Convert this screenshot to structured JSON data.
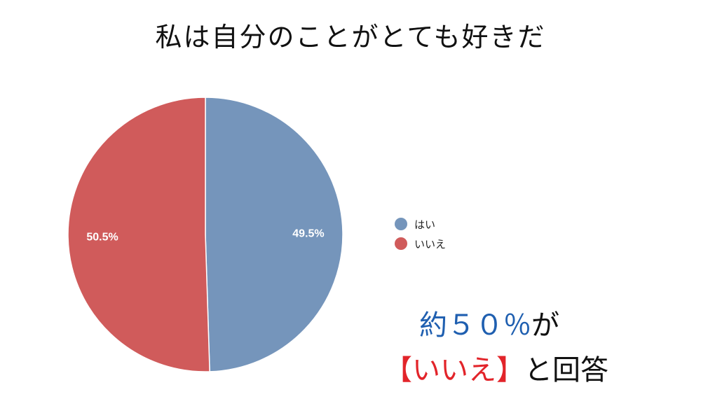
{
  "chart_data": {
    "type": "pie",
    "title": "私は自分のことがとても好きだ",
    "categories": [
      "はい",
      "いいえ"
    ],
    "values": [
      49.5,
      50.5
    ],
    "value_labels": [
      "49.5%",
      "50.5%"
    ],
    "colors": [
      "#7595bb",
      "#d05b5b"
    ],
    "legend_position": "right",
    "start": "top",
    "direction": "clockwise"
  },
  "annotation": {
    "line1_highlight": "約５０％",
    "line1_rest": "が",
    "line2_highlight": "【いいえ】",
    "line2_rest": "と回答",
    "colors": {
      "highlight1": "#1f5fb0",
      "highlight2": "#e2242a",
      "text": "#111111"
    }
  }
}
